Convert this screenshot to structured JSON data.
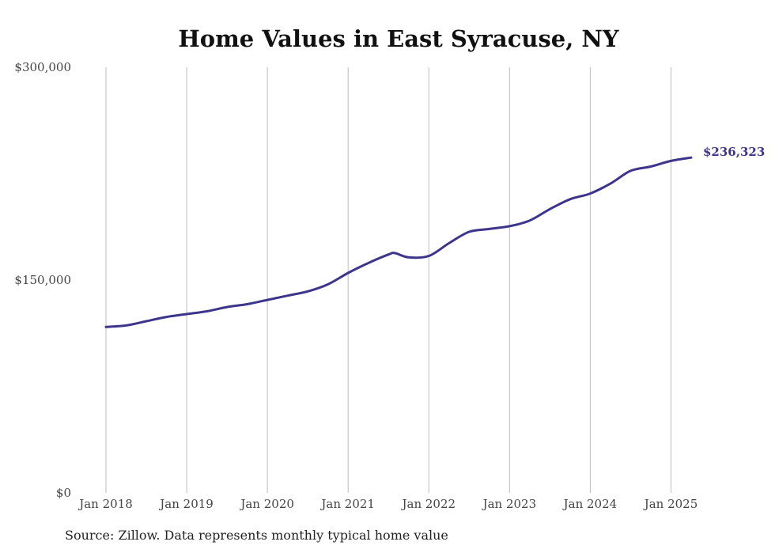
{
  "chart_data": {
    "type": "line",
    "title": "Home Values in East Syracuse, NY",
    "xlabel": "",
    "ylabel": "",
    "ylim": [
      0,
      300000
    ],
    "y_ticks": [
      {
        "value": 0,
        "label": "$0"
      },
      {
        "value": 150000,
        "label": "$150,000"
      },
      {
        "value": 300000,
        "label": "$300,000"
      }
    ],
    "x_ticks": [
      {
        "value": 2018,
        "label": "Jan 2018"
      },
      {
        "value": 2019,
        "label": "Jan 2019"
      },
      {
        "value": 2020,
        "label": "Jan 2020"
      },
      {
        "value": 2021,
        "label": "Jan 2021"
      },
      {
        "value": 2022,
        "label": "Jan 2022"
      },
      {
        "value": 2023,
        "label": "Jan 2023"
      },
      {
        "value": 2024,
        "label": "Jan 2024"
      },
      {
        "value": 2025,
        "label": "Jan 2025"
      }
    ],
    "xlim": [
      2018,
      2025.25
    ],
    "grid": {
      "vertical": true,
      "horizontal": false
    },
    "series_color": "#3d348b",
    "end_label": "$236,323",
    "series": [
      {
        "x": [
          2018.0,
          2018.25,
          2018.5,
          2018.75,
          2019.0,
          2019.25,
          2019.5,
          2019.75,
          2020.0,
          2020.25,
          2020.5,
          2020.75,
          2021.0,
          2021.25,
          2021.5,
          2021.58,
          2021.75,
          2022.0,
          2022.25,
          2022.5,
          2022.75,
          2023.0,
          2023.25,
          2023.5,
          2023.75,
          2024.0,
          2024.25,
          2024.5,
          2024.75,
          2025.0,
          2025.25
        ],
        "values": [
          117000,
          118000,
          121000,
          124000,
          126000,
          128000,
          131000,
          133000,
          136000,
          139000,
          142000,
          147000,
          155000,
          162000,
          168000,
          169000,
          166000,
          167000,
          176000,
          184000,
          186000,
          188000,
          192000,
          200000,
          207000,
          211000,
          218000,
          227000,
          230000,
          234000,
          236323
        ]
      }
    ]
  },
  "source_note": "Source: Zillow. Data represents monthly typical home value"
}
